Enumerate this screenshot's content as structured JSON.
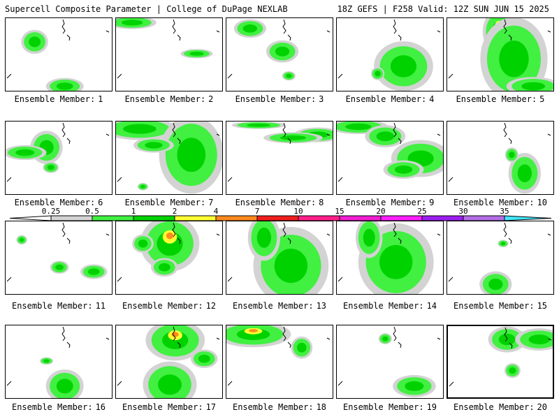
{
  "header": {
    "left": "Supercell Composite Parameter | College of DuPage NEXLAB",
    "right": "18Z GEFS | F258 Valid: 12Z SUN JUN 15 2025"
  },
  "caption_prefix": "Ensemble Member:",
  "members": [
    {
      "number": "1",
      "blobs": [
        [
          0.27,
          0.32,
          0.1,
          0.13
        ],
        [
          0.55,
          0.92,
          0.14,
          0.09
        ]
      ]
    },
    {
      "number": "2",
      "blobs": [
        [
          0.15,
          0.06,
          0.18,
          0.07
        ],
        [
          0.75,
          0.48,
          0.12,
          0.05
        ]
      ]
    },
    {
      "number": "3",
      "blobs": [
        [
          0.22,
          0.14,
          0.12,
          0.1
        ],
        [
          0.52,
          0.45,
          0.12,
          0.12
        ],
        [
          0.58,
          0.78,
          0.05,
          0.05
        ]
      ]
    },
    {
      "number": "4",
      "blobs": [
        [
          0.62,
          0.65,
          0.22,
          0.27
        ],
        [
          0.38,
          0.75,
          0.05,
          0.07
        ]
      ]
    },
    {
      "number": "5",
      "blobs": [
        [
          0.48,
          0.18,
          0.12,
          0.24
        ],
        [
          0.62,
          0.55,
          0.25,
          0.45
        ],
        [
          0.8,
          0.92,
          0.2,
          0.1
        ]
      ]
    },
    {
      "number": "6",
      "blobs": [
        [
          0.38,
          0.35,
          0.12,
          0.18
        ],
        [
          0.18,
          0.42,
          0.16,
          0.08
        ],
        [
          0.42,
          0.62,
          0.06,
          0.06
        ]
      ]
    },
    {
      "number": "7",
      "blobs": [
        [
          0.22,
          0.1,
          0.28,
          0.12
        ],
        [
          0.7,
          0.45,
          0.24,
          0.42
        ],
        [
          0.35,
          0.32,
          0.15,
          0.08
        ],
        [
          0.25,
          0.88,
          0.04,
          0.04
        ]
      ]
    },
    {
      "number": "8",
      "blobs": [
        [
          0.85,
          0.18,
          0.18,
          0.08
        ],
        [
          0.62,
          0.22,
          0.22,
          0.06
        ],
        [
          0.3,
          0.05,
          0.2,
          0.04
        ]
      ]
    },
    {
      "number": "9",
      "blobs": [
        [
          0.2,
          0.07,
          0.22,
          0.08
        ],
        [
          0.45,
          0.2,
          0.15,
          0.12
        ],
        [
          0.78,
          0.5,
          0.22,
          0.2
        ],
        [
          0.62,
          0.65,
          0.15,
          0.1
        ]
      ]
    },
    {
      "number": "10",
      "blobs": [
        [
          0.72,
          0.7,
          0.12,
          0.22
        ],
        [
          0.6,
          0.45,
          0.05,
          0.08
        ]
      ]
    },
    {
      "number": "11",
      "blobs": [
        [
          0.82,
          0.68,
          0.1,
          0.08
        ],
        [
          0.5,
          0.62,
          0.07,
          0.07
        ],
        [
          0.15,
          0.25,
          0.04,
          0.05
        ]
      ]
    },
    {
      "number": "12",
      "blobs": [
        [
          0.5,
          0.3,
          0.22,
          0.3
        ],
        [
          0.25,
          0.3,
          0.08,
          0.1
        ],
        [
          0.45,
          0.62,
          0.1,
          0.1
        ]
      ]
    },
    {
      "number": "13",
      "blobs": [
        [
          0.6,
          0.6,
          0.28,
          0.42
        ],
        [
          0.35,
          0.22,
          0.12,
          0.25
        ]
      ]
    },
    {
      "number": "14",
      "blobs": [
        [
          0.55,
          0.55,
          0.28,
          0.42
        ],
        [
          0.3,
          0.22,
          0.1,
          0.22
        ]
      ]
    },
    {
      "number": "15",
      "blobs": [
        [
          0.45,
          0.85,
          0.12,
          0.14
        ],
        [
          0.52,
          0.3,
          0.04,
          0.04
        ]
      ]
    },
    {
      "number": "16",
      "blobs": [
        [
          0.55,
          0.82,
          0.14,
          0.18
        ],
        [
          0.38,
          0.48,
          0.05,
          0.04
        ]
      ]
    },
    {
      "number": "17",
      "blobs": [
        [
          0.55,
          0.2,
          0.22,
          0.22
        ],
        [
          0.5,
          0.8,
          0.2,
          0.25
        ],
        [
          0.82,
          0.45,
          0.1,
          0.1
        ]
      ]
    },
    {
      "number": "18",
      "blobs": [
        [
          0.25,
          0.12,
          0.28,
          0.14
        ],
        [
          0.7,
          0.3,
          0.08,
          0.12
        ]
      ]
    },
    {
      "number": "19",
      "blobs": [
        [
          0.72,
          0.82,
          0.16,
          0.12
        ],
        [
          0.45,
          0.18,
          0.05,
          0.06
        ]
      ]
    },
    {
      "number": "20",
      "blobs": [
        [
          0.55,
          0.18,
          0.14,
          0.14
        ],
        [
          0.85,
          0.18,
          0.18,
          0.12
        ],
        [
          0.6,
          0.6,
          0.06,
          0.08
        ]
      ]
    }
  ],
  "selected_member": "20",
  "legend": {
    "labels": [
      "0.25",
      "0.5",
      "1",
      "2",
      "4",
      "7",
      "10",
      "15",
      "20",
      "25",
      "30",
      "35"
    ],
    "colors": [
      "#d3d3d3",
      "#41f041",
      "#00d200",
      "#ffff33",
      "#ff8a1e",
      "#f01e1e",
      "#ff1e8a",
      "#f01ed2",
      "#ff1eff",
      "#9c1ef0",
      "#b46ee6",
      "#41e6ff"
    ],
    "lowest_fill": "#ffffff"
  }
}
